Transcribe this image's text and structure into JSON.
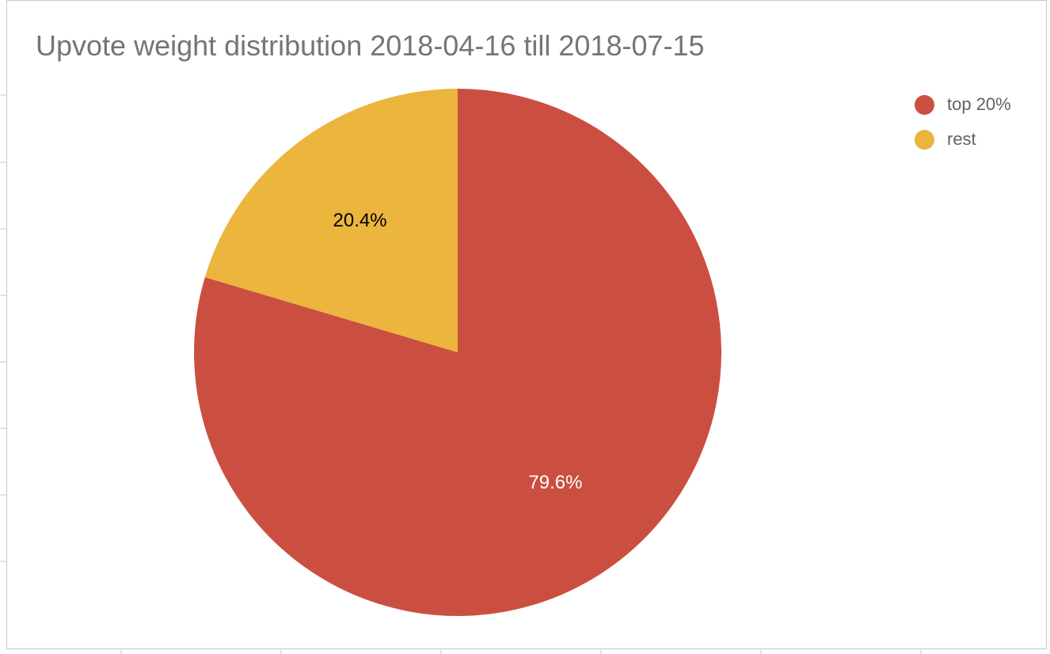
{
  "chart_data": {
    "type": "pie",
    "title": "Upvote weight distribution 2018-04-16 till 2018-07-15",
    "categories": [
      "top 20%",
      "rest"
    ],
    "values": [
      79.6,
      20.4
    ],
    "labels": [
      "79.6%",
      "20.4%"
    ],
    "colors": [
      "#cb4f41",
      "#ebb53e"
    ],
    "label_colors": [
      "#ffffff",
      "#000000"
    ],
    "legend_position": "top-right"
  }
}
